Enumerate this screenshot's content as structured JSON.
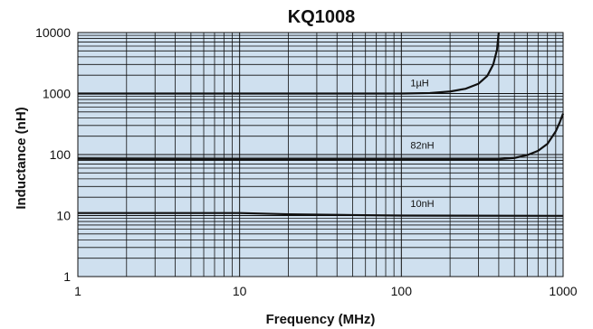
{
  "chart_data": {
    "type": "line",
    "title": "KQ1008",
    "xlabel": "Frequency (MHz)",
    "ylabel": "Inductance (nH)",
    "xscale": "log",
    "yscale": "log",
    "xlim": [
      1,
      1000
    ],
    "ylim": [
      1,
      10000
    ],
    "xticks": [
      "1",
      "10",
      "100",
      "1000"
    ],
    "yticks": [
      "1",
      "10",
      "100",
      "1000",
      "10000"
    ],
    "grid": true,
    "plot_background": "#cfe0ef",
    "line_color": "#111111",
    "series": [
      {
        "name": "1µH",
        "label_at": [
          100,
          1320
        ],
        "points": [
          [
            1,
            1000
          ],
          [
            10,
            1000
          ],
          [
            100,
            1000
          ],
          [
            150,
            1020
          ],
          [
            200,
            1080
          ],
          [
            250,
            1200
          ],
          [
            300,
            1450
          ],
          [
            340,
            1950
          ],
          [
            370,
            3000
          ],
          [
            390,
            5200
          ],
          [
            400,
            10000
          ]
        ]
      },
      {
        "name": "82nH",
        "label_at": [
          100,
          125
        ],
        "points": [
          [
            1,
            85
          ],
          [
            10,
            84
          ],
          [
            100,
            84
          ],
          [
            400,
            84
          ],
          [
            500,
            88
          ],
          [
            600,
            98
          ],
          [
            700,
            115
          ],
          [
            800,
            150
          ],
          [
            900,
            240
          ],
          [
            950,
            330
          ],
          [
            1000,
            470
          ]
        ]
      },
      {
        "name": "10nH",
        "label_at": [
          100,
          13.8
        ],
        "points": [
          [
            1,
            11
          ],
          [
            10,
            11
          ],
          [
            20,
            10.5
          ],
          [
            50,
            10.2
          ],
          [
            100,
            10
          ],
          [
            1000,
            9.9
          ]
        ]
      }
    ]
  }
}
